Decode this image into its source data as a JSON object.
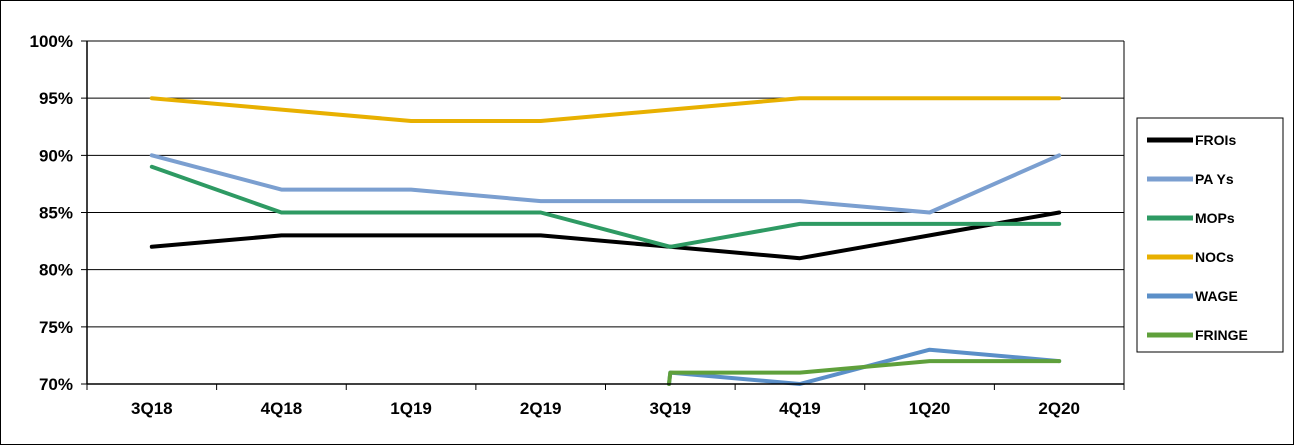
{
  "chart_data": {
    "type": "line",
    "title": "",
    "xlabel": "",
    "ylabel": "",
    "categories": [
      "3Q18",
      "4Q18",
      "1Q19",
      "2Q19",
      "3Q19",
      "4Q19",
      "1Q20",
      "2Q20"
    ],
    "ylim": [
      70,
      100
    ],
    "yticks": [
      100,
      95,
      90,
      85,
      80,
      75,
      70
    ],
    "ytick_labels": [
      "100%",
      "95%",
      "90%",
      "85%",
      "80%",
      "75%",
      "70%"
    ],
    "grid": "horizontal",
    "legend_position": "right",
    "series": [
      {
        "name": "FROIs",
        "color": "#000000",
        "values": [
          82,
          83,
          83,
          83,
          82,
          81,
          83,
          85
        ]
      },
      {
        "name": "PA Ys",
        "color": "#7B9FD0",
        "values": [
          90,
          87,
          87,
          86,
          86,
          86,
          85,
          90
        ]
      },
      {
        "name": "MOPs",
        "color": "#2E9A63",
        "values": [
          89,
          85,
          85,
          85,
          82,
          84,
          84,
          84
        ]
      },
      {
        "name": "NOCs",
        "color": "#E8B000",
        "values": [
          95,
          94,
          93,
          93,
          94,
          95,
          95,
          95
        ]
      },
      {
        "name": "WAGE",
        "color": "#5B8FC8",
        "values": [
          null,
          null,
          null,
          null,
          71,
          70,
          73,
          72
        ],
        "x_start": 3.99,
        "start_value": 70
      },
      {
        "name": "FRINGE",
        "color": "#5FA03B",
        "values": [
          null,
          null,
          null,
          null,
          71,
          71,
          72,
          72
        ],
        "x_start": 3.99,
        "start_value": 70
      }
    ]
  }
}
